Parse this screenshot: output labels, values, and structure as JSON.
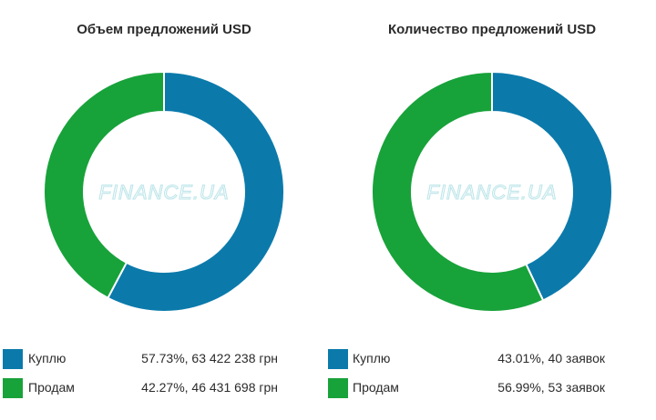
{
  "watermark": "FINANCE.UA",
  "colors": {
    "buy": "#0b7aab",
    "sell": "#18a23a"
  },
  "chart_data": [
    {
      "type": "pie",
      "title": "Объем предложений USD",
      "categories": [
        "Куплю",
        "Продам"
      ],
      "values": [
        57.73,
        42.27
      ],
      "legend_values": [
        "57.73%, 63 422 238 грн",
        "42.27%, 46 431 698 грн"
      ],
      "legend_placement": "bottom"
    },
    {
      "type": "pie",
      "title": "Количество предложений USD",
      "categories": [
        "Куплю",
        "Продам"
      ],
      "values": [
        43.01,
        56.99
      ],
      "legend_values": [
        "43.01%, 40 заявок",
        "56.99%, 53 заявок"
      ],
      "legend_placement": "bottom"
    }
  ]
}
